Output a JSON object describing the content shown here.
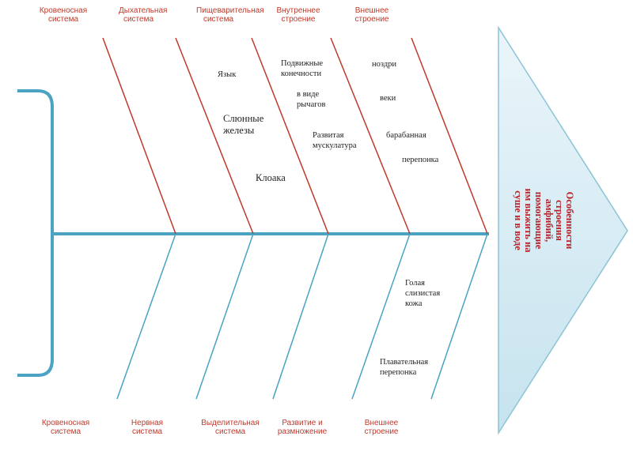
{
  "colors": {
    "bone": "#4aa3c2",
    "category_text": "#c0392b",
    "item_text": "#222222",
    "head_fill_top": "#eaf5fa",
    "head_fill_bottom": "#c6e3ee",
    "head_text": "#b8232b"
  },
  "head": {
    "text": "Особенности строения амфибий, помогающие им выжить на суше и в воде"
  },
  "top_categories": [
    {
      "label": "Кровеносная система"
    },
    {
      "label": "Дыхательная система"
    },
    {
      "label": "Пищеварительная система"
    },
    {
      "label": "Внутреннее строение"
    },
    {
      "label": "Внешнее строение"
    }
  ],
  "bottom_categories": [
    {
      "label": "Кровеносная система"
    },
    {
      "label": "Нервная система"
    },
    {
      "label": "Выделительная система"
    },
    {
      "label": "Развитие и размножение"
    },
    {
      "label": "Внешнее строение"
    }
  ],
  "items": {
    "digestive": [
      "Язык",
      "Слюнные железы",
      "Клоака"
    ],
    "internal": [
      "Подвижные конечности",
      "в виде рычагов",
      "Развитая мускулатура"
    ],
    "external_top": [
      "ноздри",
      "веки",
      "барабанная",
      "перепонка"
    ],
    "external_bottom": [
      "Голая слизистая кожа",
      "Плавательная перепонка"
    ]
  }
}
